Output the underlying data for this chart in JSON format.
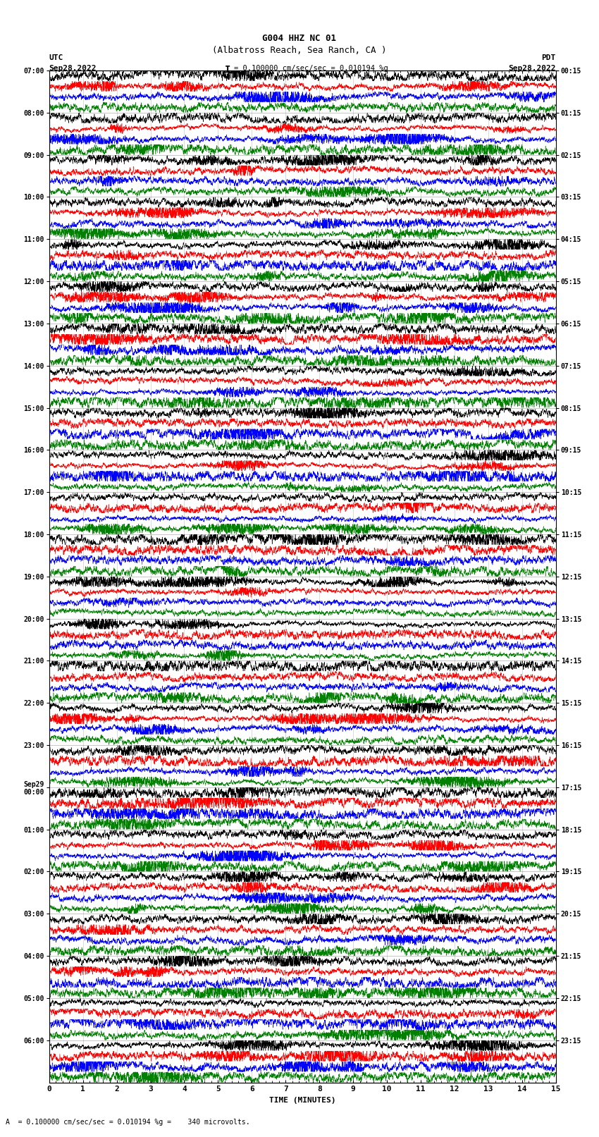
{
  "title_line1": "G004 HHZ NC 01",
  "title_line2": "(Albatross Reach, Sea Ranch, CA )",
  "left_label": "UTC",
  "right_label": "PDT",
  "date_left": "Sep28,2022",
  "date_right": "Sep28,2022",
  "scale_text": "= 0.100000 cm/sec/sec = 0.010194 %g",
  "scale_bar": "I",
  "bottom_label": "TIME (MINUTES)",
  "footer_text": "A  = 0.100000 cm/sec/sec = 0.010194 %g =    340 microvolts.",
  "x_min": 0,
  "x_max": 15,
  "x_ticks": [
    0,
    1,
    2,
    3,
    4,
    5,
    6,
    7,
    8,
    9,
    10,
    11,
    12,
    13,
    14,
    15
  ],
  "colors": [
    "black",
    "red",
    "blue",
    "green"
  ],
  "utc_labels": [
    "07:00",
    "08:00",
    "09:00",
    "10:00",
    "11:00",
    "12:00",
    "13:00",
    "14:00",
    "15:00",
    "16:00",
    "17:00",
    "18:00",
    "19:00",
    "20:00",
    "21:00",
    "22:00",
    "23:00",
    "Sep29\n00:00",
    "01:00",
    "02:00",
    "03:00",
    "04:00",
    "05:00",
    "06:00"
  ],
  "pdt_labels": [
    "00:15",
    "01:15",
    "02:15",
    "03:15",
    "04:15",
    "05:15",
    "06:15",
    "07:15",
    "08:15",
    "09:15",
    "10:15",
    "11:15",
    "12:15",
    "13:15",
    "14:15",
    "15:15",
    "16:15",
    "17:15",
    "18:15",
    "19:15",
    "20:15",
    "21:15",
    "22:15",
    "23:15"
  ],
  "num_hours": 24,
  "traces_per_hour": 4,
  "background_color": "white",
  "fig_width": 8.5,
  "fig_height": 16.13,
  "dpi": 100
}
